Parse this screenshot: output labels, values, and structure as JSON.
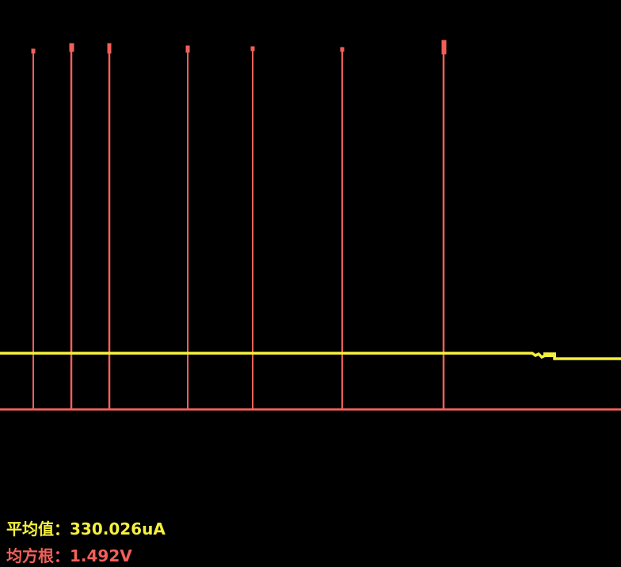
{
  "readouts": [
    {
      "text": "平均值：330.026uA",
      "color": "#f5f03c"
    },
    {
      "text": "均方根：1.492V",
      "color": "#f0605a"
    }
  ]
}
